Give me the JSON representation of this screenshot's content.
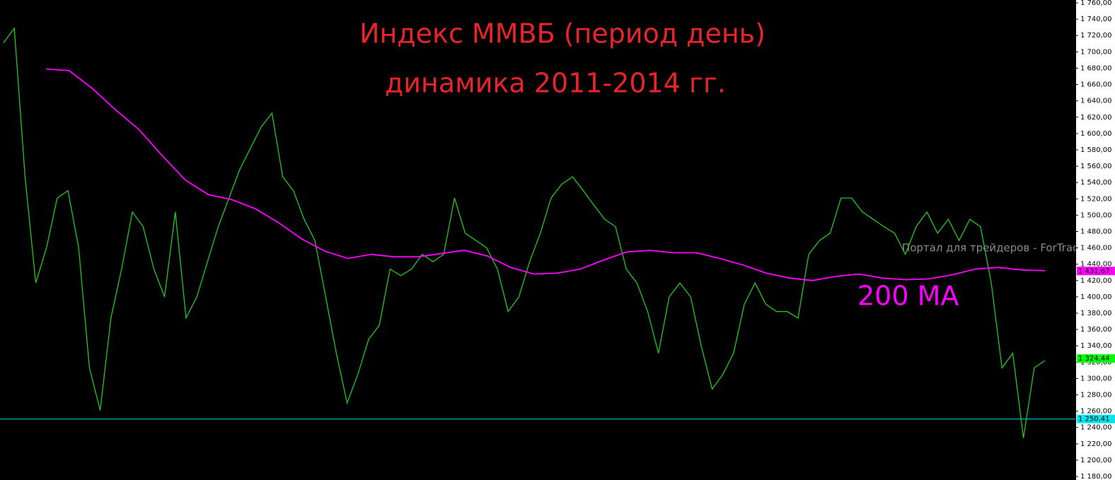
{
  "chart_data": {
    "type": "line",
    "title": "Индекс ММВБ (период день)",
    "subtitle": "динамика 2011-2014 гг.",
    "annotations": [
      "200 MA",
      "Портал для трейдеров - ForTrader.ru"
    ],
    "ylim": [
      1175.7,
      1763.5
    ],
    "yticks": [
      {
        "value": 1180,
        "label": "1 180,00"
      },
      {
        "value": 1200,
        "label": "1 200,00"
      },
      {
        "value": 1220,
        "label": "1 220,00"
      },
      {
        "value": 1240,
        "label": "1 240,00"
      },
      {
        "value": 1260,
        "label": "1 260,00"
      },
      {
        "value": 1280,
        "label": "1 280,00"
      },
      {
        "value": 1300,
        "label": "1 300,00"
      },
      {
        "value": 1320,
        "label": "1 320,00"
      },
      {
        "value": 1340,
        "label": "1 340,00"
      },
      {
        "value": 1360,
        "label": "1 360,00"
      },
      {
        "value": 1380,
        "label": "1 380,00"
      },
      {
        "value": 1400,
        "label": "1 400,00"
      },
      {
        "value": 1420,
        "label": "1 420,00"
      },
      {
        "value": 1440,
        "label": "1 440,00"
      },
      {
        "value": 1460,
        "label": "1 460,00"
      },
      {
        "value": 1480,
        "label": "1 480,00"
      },
      {
        "value": 1500,
        "label": "1 500,00"
      },
      {
        "value": 1520,
        "label": "1 520,00"
      },
      {
        "value": 1540,
        "label": "1 540,00"
      },
      {
        "value": 1560,
        "label": "1 560,00"
      },
      {
        "value": 1580,
        "label": "1 580,00"
      },
      {
        "value": 1600,
        "label": "1 600,00"
      },
      {
        "value": 1620,
        "label": "1 620,00"
      },
      {
        "value": 1640,
        "label": "1 640,00"
      },
      {
        "value": 1660,
        "label": "1 660,00"
      },
      {
        "value": 1680,
        "label": "1 680,00"
      },
      {
        "value": 1700,
        "label": "1 700,00"
      },
      {
        "value": 1720,
        "label": "1 720,00"
      },
      {
        "value": 1740,
        "label": "1 740,00"
      },
      {
        "value": 1760,
        "label": "1 760,00"
      }
    ],
    "series": [
      {
        "color": "#22c722",
        "values": [
          1711,
          1729,
          1547,
          1417,
          1460,
          1521,
          1530,
          1460,
          1313,
          1261,
          1374,
          1434,
          1504,
          1486,
          1434,
          1400,
          1504,
          1374,
          1400,
          1443,
          1486,
          1521,
          1556,
          1582,
          1608,
          1625,
          1547,
          1530,
          1495,
          1469,
          1400,
          1331,
          1270,
          1305,
          1348,
          1365,
          1434,
          1426,
          1434,
          1452,
          1443,
          1452,
          1521,
          1478,
          1469,
          1460,
          1434,
          1382,
          1400,
          1443,
          1478,
          1521,
          1538,
          1547,
          1530,
          1512,
          1495,
          1486,
          1434,
          1417,
          1382,
          1331,
          1400,
          1417,
          1400,
          1339,
          1287,
          1305,
          1331,
          1391,
          1417,
          1391,
          1382,
          1382,
          1374,
          1452,
          1469,
          1478,
          1521,
          1521,
          1504,
          1495,
          1486,
          1478,
          1452,
          1486,
          1504,
          1478,
          1495,
          1469,
          1495,
          1486,
          1417,
          1313,
          1331,
          1227,
          1313,
          1322
        ]
      },
      {
        "color": "#ff00ff",
        "values": [
          1679,
          1677,
          1655,
          1629,
          1605,
          1573,
          1543,
          1525,
          1519,
          1508,
          1491,
          1471,
          1456,
          1447,
          1452,
          1449,
          1449,
          1453,
          1457,
          1450,
          1436,
          1428,
          1429,
          1434,
          1445,
          1455,
          1457,
          1454,
          1454,
          1447,
          1439,
          1429,
          1423,
          1420,
          1425,
          1428,
          1423,
          1421,
          1422,
          1427,
          1434,
          1436,
          1433,
          1432
        ]
      }
    ],
    "price_markers": [
      {
        "value": 1431.67,
        "label": "1 431,67",
        "color": "#ff00ff"
      },
      {
        "value": 1324.44,
        "label": "1 324,44",
        "color": "#00ff00"
      },
      {
        "value": 1250.41,
        "label": "1 250,41",
        "color": "#00e5ee"
      }
    ]
  }
}
